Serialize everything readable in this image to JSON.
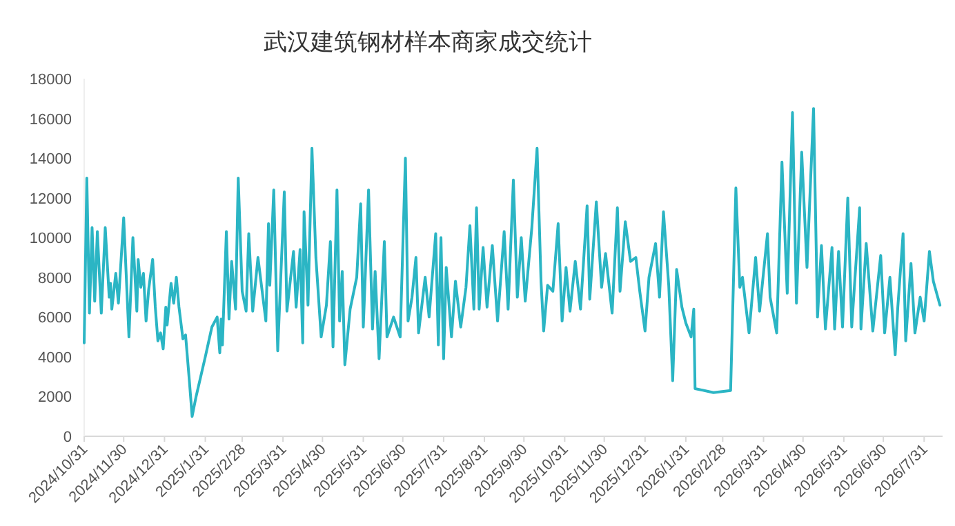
{
  "chart_data": {
    "type": "line",
    "title": "武汉建筑钢材样本商家成交统计",
    "x": [
      "2024-10-31",
      "2024-11-02",
      "2024-11-04",
      "2024-11-06",
      "2024-11-08",
      "2024-11-10",
      "2024-11-13",
      "2024-11-16",
      "2024-11-19",
      "2024-11-20",
      "2024-11-21",
      "2024-11-24",
      "2024-11-26",
      "2024-11-30",
      "2024-12-04",
      "2024-12-07",
      "2024-12-10",
      "2024-12-11",
      "2024-12-13",
      "2024-12-15",
      "2024-12-17",
      "2024-12-19",
      "2024-12-22",
      "2024-12-24",
      "2024-12-26",
      "2024-12-28",
      "2024-12-30",
      "2025-01-01",
      "2025-01-02",
      "2025-01-05",
      "2025-01-07",
      "2025-01-09",
      "2025-01-11",
      "2025-01-14",
      "2025-01-16",
      "2025-01-19",
      "2025-01-21",
      "2025-01-24",
      "2025-01-31",
      "2025-02-05",
      "2025-02-09",
      "2025-02-11",
      "2025-02-12",
      "2025-02-13",
      "2025-02-16",
      "2025-02-18",
      "2025-02-20",
      "2025-02-23",
      "2025-02-25",
      "2025-02-28",
      "2025-03-03",
      "2025-03-05",
      "2025-03-08",
      "2025-03-12",
      "2025-03-18",
      "2025-03-20",
      "2025-03-21",
      "2025-03-24",
      "2025-03-27",
      "2025-04-01",
      "2025-04-03",
      "2025-04-08",
      "2025-04-10",
      "2025-04-13",
      "2025-04-15",
      "2025-04-16",
      "2025-04-19",
      "2025-04-22",
      "2025-04-25",
      "2025-04-29",
      "2025-05-03",
      "2025-05-06",
      "2025-05-08",
      "2025-05-11",
      "2025-05-13",
      "2025-05-15",
      "2025-05-17",
      "2025-05-21",
      "2025-05-26",
      "2025-05-29",
      "2025-05-31",
      "2025-06-04",
      "2025-06-07",
      "2025-06-09",
      "2025-06-12",
      "2025-06-16",
      "2025-06-18",
      "2025-06-23",
      "2025-06-28",
      "2025-07-02",
      "2025-07-04",
      "2025-07-07",
      "2025-07-10",
      "2025-07-12",
      "2025-07-17",
      "2025-07-20",
      "2025-07-25",
      "2025-07-27",
      "2025-07-29",
      "2025-07-31",
      "2025-08-02",
      "2025-08-06",
      "2025-08-09",
      "2025-08-13",
      "2025-08-17",
      "2025-08-20",
      "2025-08-23",
      "2025-08-25",
      "2025-08-27",
      "2025-08-30",
      "2025-09-02",
      "2025-09-06",
      "2025-09-10",
      "2025-09-15",
      "2025-09-18",
      "2025-09-22",
      "2025-09-25",
      "2025-09-28",
      "2025-10-01",
      "2025-10-06",
      "2025-10-10",
      "2025-10-13",
      "2025-10-15",
      "2025-10-18",
      "2025-10-22",
      "2025-10-26",
      "2025-10-29",
      "2025-11-01",
      "2025-11-04",
      "2025-11-08",
      "2025-11-12",
      "2025-11-17",
      "2025-11-19",
      "2025-11-24",
      "2025-11-28",
      "2025-12-01",
      "2025-12-06",
      "2025-12-10",
      "2025-12-12",
      "2025-12-16",
      "2025-12-20",
      "2025-12-24",
      "2025-12-27",
      "2025-12-31",
      "2026-01-03",
      "2026-01-08",
      "2026-01-11",
      "2026-01-14",
      "2026-01-18",
      "2026-01-21",
      "2026-01-24",
      "2026-01-28",
      "2026-01-31",
      "2026-02-04",
      "2026-02-06",
      "2026-02-07",
      "2026-02-21",
      "2026-03-06",
      "2026-03-10",
      "2026-03-13",
      "2026-03-15",
      "2026-03-20",
      "2026-03-25",
      "2026-03-28",
      "2026-04-03",
      "2026-04-05",
      "2026-04-10",
      "2026-04-14",
      "2026-04-18",
      "2026-04-22",
      "2026-04-25",
      "2026-04-29",
      "2026-05-03",
      "2026-05-08",
      "2026-05-11",
      "2026-05-14",
      "2026-05-17",
      "2026-05-22",
      "2026-05-24",
      "2026-05-27",
      "2026-05-30",
      "2026-06-03",
      "2026-06-06",
      "2026-06-12",
      "2026-06-13",
      "2026-06-17",
      "2026-06-22",
      "2026-06-28",
      "2026-07-01",
      "2026-07-05",
      "2026-07-09",
      "2026-07-11",
      "2026-07-15",
      "2026-07-17",
      "2026-07-21",
      "2026-07-24",
      "2026-07-28",
      "2026-07-31",
      "2026-08-04",
      "2026-08-07",
      "2026-08-12"
    ],
    "series": [
      {
        "color": "#2bb5c4",
        "values": [
          4700,
          13000,
          6200,
          10500,
          6800,
          10300,
          6200,
          10500,
          7000,
          7700,
          6400,
          8200,
          6700,
          11000,
          5000,
          10000,
          6300,
          8900,
          7500,
          8200,
          5800,
          7400,
          8900,
          6500,
          4800,
          5200,
          4400,
          6500,
          5600,
          7700,
          6700,
          8000,
          6500,
          4900,
          5100,
          2700,
          1000,
          2000,
          4000,
          5500,
          6000,
          4200,
          5900,
          4600,
          10300,
          5900,
          8800,
          6400,
          13000,
          7300,
          6300,
          10200,
          6300,
          9000,
          5800,
          10700,
          7600,
          12400,
          4300,
          12300,
          6300,
          9300,
          6500,
          9400,
          4700,
          11300,
          6600,
          14500,
          9000,
          5000,
          6600,
          9800,
          4500,
          12400,
          5800,
          8300,
          3600,
          6400,
          8000,
          11700,
          5500,
          12400,
          5400,
          8300,
          3900,
          9800,
          5000,
          6000,
          5000,
          14000,
          5800,
          7000,
          9000,
          5200,
          8000,
          6000,
          10200,
          4600,
          10000,
          3900,
          8500,
          5000,
          7800,
          5500,
          7500,
          10600,
          6400,
          11500,
          6400,
          9500,
          6500,
          9600,
          5800,
          10300,
          6400,
          12900,
          7000,
          10000,
          6800,
          10500,
          14500,
          7800,
          5300,
          7600,
          7300,
          10700,
          5800,
          8500,
          6300,
          8800,
          6400,
          11600,
          6900,
          11800,
          7500,
          9200,
          6200,
          11500,
          7300,
          10800,
          8800,
          9000,
          7300,
          5300,
          8000,
          9700,
          7000,
          11300,
          7600,
          2800,
          8400,
          6500,
          5700,
          5000,
          6400,
          2400,
          2200,
          2300,
          12500,
          7500,
          8000,
          5200,
          9000,
          6300,
          10200,
          7000,
          5200,
          13800,
          7200,
          16300,
          6700,
          14300,
          8500,
          16500,
          6000,
          9600,
          5400,
          9500,
          5400,
          9300,
          5500,
          12000,
          5500,
          11500,
          5400,
          9700,
          5300,
          9100,
          5200,
          8000,
          4100,
          6500,
          10200,
          4800,
          8700,
          5200,
          7000,
          5800,
          9300,
          7800,
          6600
        ]
      }
    ],
    "xlim": [
      "2024-10-31",
      "2026-08-14"
    ],
    "xticks": [
      {
        "value": "2024-10-31",
        "label": "2024/10/31"
      },
      {
        "value": "2024-11-30",
        "label": "2024/11/30"
      },
      {
        "value": "2024-12-31",
        "label": "2024/12/31"
      },
      {
        "value": "2025-01-31",
        "label": "2025/1/31"
      },
      {
        "value": "2025-02-28",
        "label": "2025/2/28"
      },
      {
        "value": "2025-03-31",
        "label": "2025/3/31"
      },
      {
        "value": "2025-04-30",
        "label": "2025/4/30"
      },
      {
        "value": "2025-05-31",
        "label": "2025/5/31"
      },
      {
        "value": "2025-06-30",
        "label": "2025/6/30"
      },
      {
        "value": "2025-07-31",
        "label": "2025/7/31"
      },
      {
        "value": "2025-08-31",
        "label": "2025/8/31"
      },
      {
        "value": "2025-09-30",
        "label": "2025/9/30"
      },
      {
        "value": "2025-10-31",
        "label": "2025/10/31"
      },
      {
        "value": "2025-11-30",
        "label": "2025/11/30"
      },
      {
        "value": "2025-12-31",
        "label": "2025/12/31"
      },
      {
        "value": "2026-01-31",
        "label": "2026/1/31"
      },
      {
        "value": "2026-02-28",
        "label": "2026/2/28"
      },
      {
        "value": "2026-03-31",
        "label": "2026/3/31"
      },
      {
        "value": "2026-04-30",
        "label": "2026/4/30"
      },
      {
        "value": "2026-05-31",
        "label": "2026/5/31"
      },
      {
        "value": "2026-06-30",
        "label": "2026/6/30"
      },
      {
        "value": "2026-07-31",
        "label": "2026/7/31"
      }
    ],
    "ylim": [
      0,
      18000
    ],
    "yticks": [
      0,
      2000,
      4000,
      6000,
      8000,
      10000,
      12000,
      14000,
      16000,
      18000
    ],
    "grid": false
  }
}
